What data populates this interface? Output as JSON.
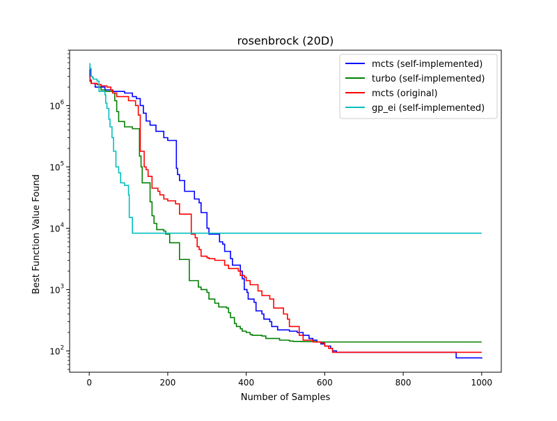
{
  "chart_data": {
    "type": "line",
    "title": "rosenbrock (20D)",
    "xlabel": "Number of Samples",
    "ylabel": "Best Function Value Found",
    "xlim": [
      -50,
      1050
    ],
    "ylim": [
      45,
      8000000
    ],
    "yscale": "log",
    "grid": false,
    "legend_position": "top-right",
    "x_ticks": [
      0,
      200,
      400,
      600,
      800,
      1000
    ],
    "y_ticks": [
      {
        "value": 100,
        "base": "10",
        "exp": "2"
      },
      {
        "value": 1000,
        "base": "10",
        "exp": "3"
      },
      {
        "value": 10000,
        "base": "10",
        "exp": "4"
      },
      {
        "value": 100000,
        "base": "10",
        "exp": "5"
      },
      {
        "value": 1000000,
        "base": "10",
        "exp": "6"
      }
    ],
    "series": [
      {
        "name": "mcts (self-implemented)",
        "color": "#0000ff",
        "points": [
          [
            0,
            4200000
          ],
          [
            2,
            2600000
          ],
          [
            5,
            2300000
          ],
          [
            15,
            2000000
          ],
          [
            40,
            1800000
          ],
          [
            60,
            1700000
          ],
          [
            90,
            1600000
          ],
          [
            110,
            1400000
          ],
          [
            120,
            1300000
          ],
          [
            130,
            1000000
          ],
          [
            138,
            750000
          ],
          [
            145,
            560000
          ],
          [
            155,
            480000
          ],
          [
            170,
            380000
          ],
          [
            185,
            380000
          ],
          [
            190,
            300000
          ],
          [
            200,
            270000
          ],
          [
            220,
            270000
          ],
          [
            222,
            95000
          ],
          [
            225,
            75000
          ],
          [
            230,
            60000
          ],
          [
            240,
            60000
          ],
          [
            243,
            40000
          ],
          [
            265,
            40000
          ],
          [
            268,
            30000
          ],
          [
            280,
            26000
          ],
          [
            285,
            18000
          ],
          [
            298,
            18000
          ],
          [
            300,
            10000
          ],
          [
            305,
            8000
          ],
          [
            330,
            8000
          ],
          [
            332,
            6000
          ],
          [
            340,
            5500
          ],
          [
            345,
            4200
          ],
          [
            360,
            3200
          ],
          [
            365,
            2500
          ],
          [
            385,
            2000
          ],
          [
            390,
            1500
          ],
          [
            395,
            1000
          ],
          [
            402,
            900
          ],
          [
            405,
            700
          ],
          [
            420,
            620
          ],
          [
            425,
            450
          ],
          [
            440,
            400
          ],
          [
            445,
            330
          ],
          [
            460,
            300
          ],
          [
            465,
            250
          ],
          [
            480,
            220
          ],
          [
            510,
            210
          ],
          [
            530,
            200
          ],
          [
            545,
            180
          ],
          [
            560,
            160
          ],
          [
            570,
            150
          ],
          [
            580,
            140
          ],
          [
            590,
            130
          ],
          [
            600,
            120
          ],
          [
            615,
            110
          ],
          [
            620,
            100
          ],
          [
            630,
            95
          ],
          [
            700,
            95
          ],
          [
            800,
            95
          ],
          [
            930,
            95
          ],
          [
            935,
            77
          ],
          [
            1000,
            75
          ]
        ]
      },
      {
        "name": "turbo (self-implemented)",
        "color": "#008000",
        "points": [
          [
            0,
            2500000
          ],
          [
            5,
            2300000
          ],
          [
            20,
            2200000
          ],
          [
            30,
            1800000
          ],
          [
            40,
            1700000
          ],
          [
            60,
            1600000
          ],
          [
            65,
            1200000
          ],
          [
            70,
            800000
          ],
          [
            75,
            550000
          ],
          [
            90,
            450000
          ],
          [
            105,
            450000
          ],
          [
            110,
            420000
          ],
          [
            125,
            420000
          ],
          [
            128,
            150000
          ],
          [
            132,
            100000
          ],
          [
            135,
            55000
          ],
          [
            150,
            55000
          ],
          [
            155,
            27000
          ],
          [
            160,
            16000
          ],
          [
            165,
            12000
          ],
          [
            172,
            9500
          ],
          [
            190,
            9000
          ],
          [
            195,
            8000
          ],
          [
            205,
            5800
          ],
          [
            225,
            5800
          ],
          [
            230,
            3100
          ],
          [
            250,
            3100
          ],
          [
            255,
            1400
          ],
          [
            270,
            1400
          ],
          [
            278,
            1100
          ],
          [
            285,
            1000
          ],
          [
            300,
            900
          ],
          [
            305,
            700
          ],
          [
            320,
            600
          ],
          [
            330,
            520
          ],
          [
            350,
            500
          ],
          [
            355,
            420
          ],
          [
            360,
            350
          ],
          [
            370,
            280
          ],
          [
            375,
            250
          ],
          [
            385,
            230
          ],
          [
            390,
            210
          ],
          [
            400,
            200
          ],
          [
            410,
            185
          ],
          [
            415,
            180
          ],
          [
            440,
            175
          ],
          [
            450,
            160
          ],
          [
            470,
            160
          ],
          [
            485,
            150
          ],
          [
            510,
            145
          ],
          [
            520,
            143
          ],
          [
            540,
            142
          ],
          [
            560,
            142
          ],
          [
            580,
            140
          ],
          [
            600,
            140
          ],
          [
            700,
            140
          ],
          [
            800,
            140
          ],
          [
            1000,
            140
          ]
        ]
      },
      {
        "name": "mcts (original)",
        "color": "#ff0000",
        "points": [
          [
            0,
            3000000
          ],
          [
            2,
            2500000
          ],
          [
            5,
            2300000
          ],
          [
            20,
            2200000
          ],
          [
            30,
            2100000
          ],
          [
            45,
            2000000
          ],
          [
            55,
            1800000
          ],
          [
            60,
            1600000
          ],
          [
            70,
            1400000
          ],
          [
            100,
            1200000
          ],
          [
            118,
            1000000
          ],
          [
            125,
            700000
          ],
          [
            130,
            180000
          ],
          [
            140,
            100000
          ],
          [
            145,
            90000
          ],
          [
            150,
            70000
          ],
          [
            160,
            45000
          ],
          [
            175,
            40000
          ],
          [
            180,
            35000
          ],
          [
            190,
            30000
          ],
          [
            200,
            28000
          ],
          [
            220,
            25000
          ],
          [
            230,
            17000
          ],
          [
            255,
            17000
          ],
          [
            260,
            8000
          ],
          [
            270,
            7000
          ],
          [
            275,
            5000
          ],
          [
            280,
            4500
          ],
          [
            285,
            3500
          ],
          [
            300,
            3300
          ],
          [
            305,
            3200
          ],
          [
            320,
            3000
          ],
          [
            340,
            3000
          ],
          [
            345,
            2500
          ],
          [
            355,
            2200
          ],
          [
            380,
            2000
          ],
          [
            385,
            1700
          ],
          [
            395,
            1600
          ],
          [
            400,
            1400
          ],
          [
            410,
            1200
          ],
          [
            430,
            950
          ],
          [
            440,
            800
          ],
          [
            460,
            700
          ],
          [
            470,
            500
          ],
          [
            490,
            500
          ],
          [
            495,
            400
          ],
          [
            505,
            330
          ],
          [
            510,
            250
          ],
          [
            530,
            250
          ],
          [
            535,
            180
          ],
          [
            545,
            150
          ],
          [
            570,
            140
          ],
          [
            590,
            135
          ],
          [
            600,
            120
          ],
          [
            610,
            110
          ],
          [
            620,
            95
          ],
          [
            640,
            95
          ],
          [
            700,
            95
          ],
          [
            800,
            95
          ],
          [
            1000,
            95
          ]
        ]
      },
      {
        "name": "gp_ei (self-implemented)",
        "color": "#00bfbf",
        "points": [
          [
            0,
            4800000
          ],
          [
            2,
            4000000
          ],
          [
            5,
            3000000
          ],
          [
            8,
            2900000
          ],
          [
            10,
            2700000
          ],
          [
            20,
            2500000
          ],
          [
            25,
            1700000
          ],
          [
            35,
            1700000
          ],
          [
            40,
            1500000
          ],
          [
            42,
            1100000
          ],
          [
            45,
            900000
          ],
          [
            50,
            600000
          ],
          [
            53,
            450000
          ],
          [
            58,
            300000
          ],
          [
            62,
            180000
          ],
          [
            68,
            100000
          ],
          [
            75,
            80000
          ],
          [
            80,
            55000
          ],
          [
            90,
            50000
          ],
          [
            100,
            35000
          ],
          [
            102,
            15000
          ],
          [
            110,
            8300
          ],
          [
            150,
            8300
          ],
          [
            300,
            8300
          ],
          [
            500,
            8300
          ],
          [
            700,
            8300
          ],
          [
            1000,
            8300
          ]
        ]
      }
    ]
  }
}
